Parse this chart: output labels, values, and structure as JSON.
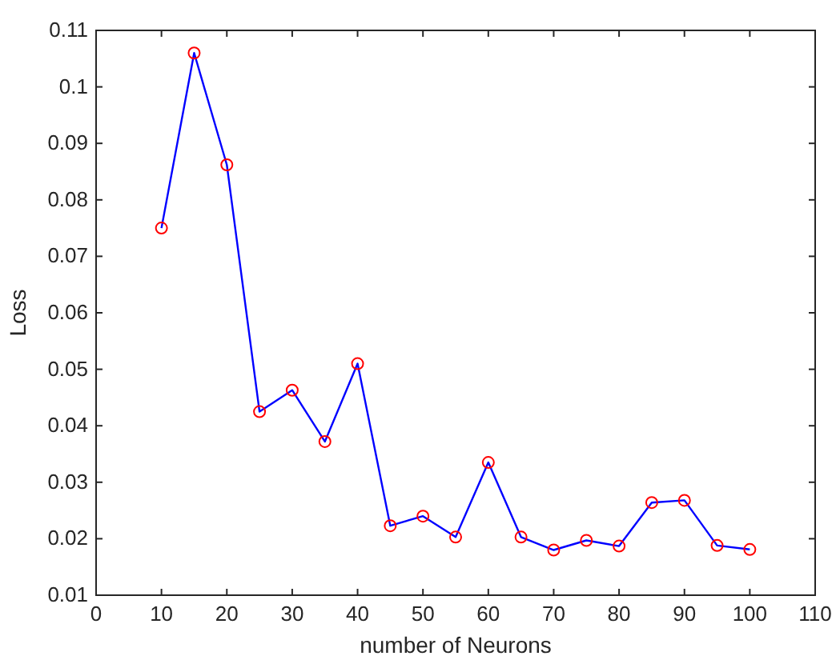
{
  "chart_data": {
    "type": "line",
    "xlabel": "number of Neurons",
    "ylabel": "Loss",
    "x": [
      10,
      15,
      20,
      25,
      30,
      35,
      40,
      45,
      50,
      55,
      60,
      65,
      70,
      75,
      80,
      85,
      90,
      95,
      100
    ],
    "series": [
      {
        "color": "#0000ff",
        "marker": "none",
        "values": [
          0.075,
          0.106,
          0.0862,
          0.0425,
          0.0463,
          0.0372,
          0.051,
          0.0223,
          0.024,
          0.0203,
          0.0335,
          0.0203,
          0.018,
          0.0197,
          0.0187,
          0.0264,
          0.0268,
          0.0188,
          0.0181
        ]
      },
      {
        "type": "scatter",
        "color": "#ff0000",
        "marker": "circle",
        "values": [
          0.075,
          0.106,
          0.0862,
          0.0425,
          0.0463,
          0.0372,
          0.051,
          0.0223,
          0.024,
          0.0203,
          0.0335,
          0.0203,
          0.018,
          0.0197,
          0.0187,
          0.0264,
          0.0268,
          0.0188,
          0.0181
        ]
      }
    ],
    "xlim": [
      0,
      110
    ],
    "xticks": [
      0,
      10,
      20,
      30,
      40,
      50,
      60,
      70,
      80,
      90,
      100,
      110
    ],
    "ylim": [
      0.01,
      0.11
    ],
    "yticks": [
      0.01,
      0.02,
      0.03,
      0.04,
      0.05,
      0.06,
      0.07,
      0.08,
      0.09,
      0.1,
      0.11
    ],
    "grid": false
  }
}
